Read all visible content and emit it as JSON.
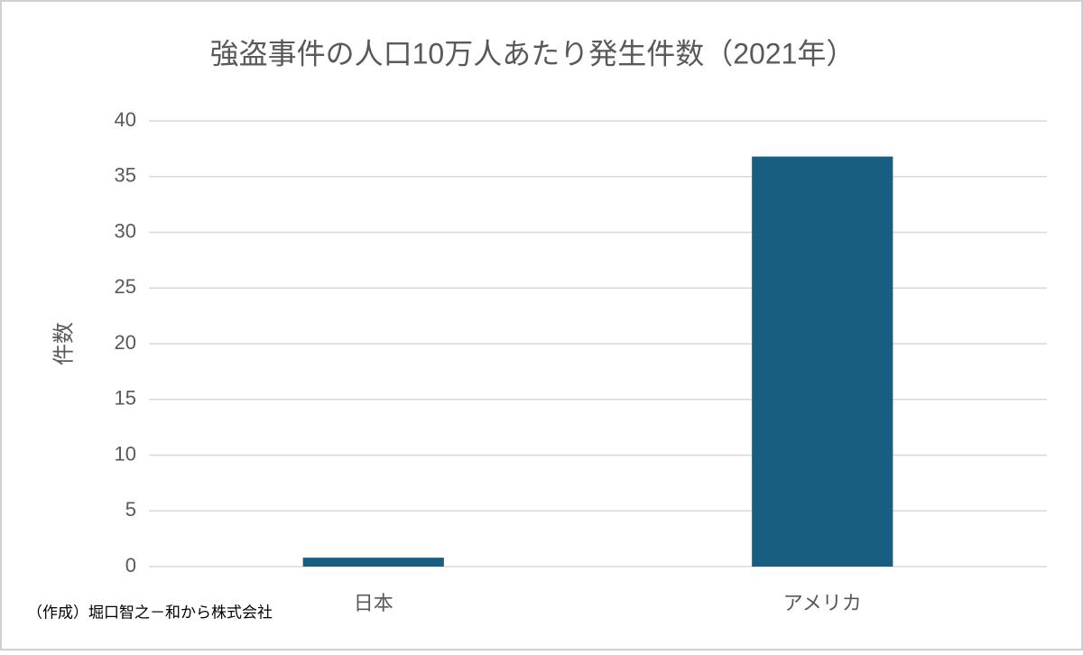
{
  "chart_data": {
    "type": "bar",
    "title": "強盗事件の人口10万人あたり発生件数（2021年）",
    "y_label": "件数",
    "categories": [
      "日本",
      "アメリカ"
    ],
    "values": [
      0.8,
      36.8
    ],
    "color": "#175e80",
    "ylim": [
      0,
      40
    ],
    "yticks": [
      0,
      5,
      10,
      15,
      20,
      25,
      30,
      35,
      40
    ],
    "grid": true,
    "source": "（作成）堀口智之－和から株式会社"
  }
}
